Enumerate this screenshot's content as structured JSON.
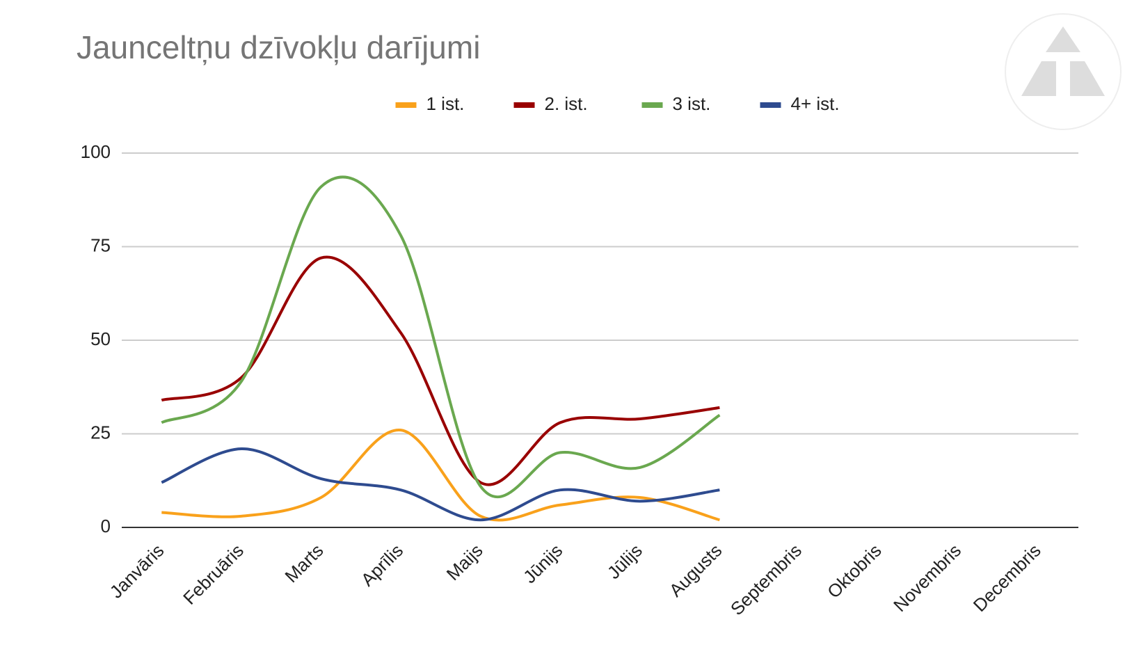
{
  "chart_data": {
    "type": "line",
    "title": "Jaunceltņu dzīvokļu darījumi",
    "categories": [
      "Janvāris",
      "Februāris",
      "Marts",
      "Aprīlis",
      "Maijs",
      "Jūnijs",
      "Jūlijs",
      "Augusts",
      "Septembris",
      "Oktobris",
      "Novembris",
      "Decembris"
    ],
    "series": [
      {
        "name": "1 ist.",
        "color": "#f9a11b",
        "values": [
          4,
          3,
          8,
          26,
          3,
          6,
          8,
          2,
          null,
          null,
          null,
          null
        ]
      },
      {
        "name": "2. ist.",
        "color": "#990000",
        "values": [
          34,
          40,
          72,
          52,
          12,
          28,
          29,
          32,
          null,
          null,
          null,
          null
        ]
      },
      {
        "name": "3 ist.",
        "color": "#6aa84f",
        "values": [
          28,
          39,
          91,
          78,
          11,
          20,
          16,
          30,
          null,
          null,
          null,
          null
        ]
      },
      {
        "name": "4+ ist.",
        "color": "#2e4b8f",
        "values": [
          12,
          21,
          13,
          10,
          2,
          10,
          7,
          10,
          null,
          null,
          null,
          null
        ]
      }
    ],
    "ylim": [
      0,
      100
    ],
    "yticks": [
      0,
      25,
      50,
      75,
      100
    ],
    "grid": true,
    "legend": "top",
    "smooth": true
  }
}
